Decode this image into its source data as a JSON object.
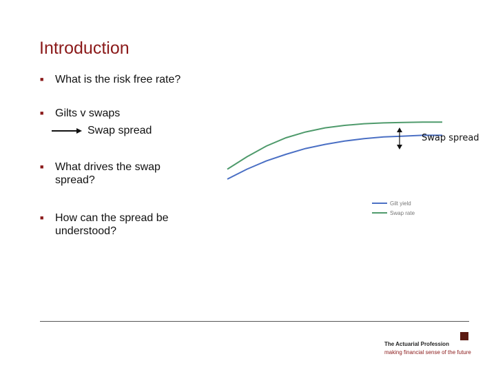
{
  "slide": {
    "title": "Introduction",
    "bullets": [
      {
        "text": "What is the risk free rate?"
      },
      {
        "text": "Gilts v swaps"
      },
      {
        "text": "What drives the swap spread?"
      },
      {
        "text": "How can the spread be understood?"
      }
    ],
    "sub_item": "Swap spread"
  },
  "colors": {
    "title": "#8b1a1a",
    "bullet_marker": "#8b1a1a",
    "gilt_line": "#4a6fc4",
    "swap_line": "#4e9a6b",
    "logo": "#5b1a12"
  },
  "chart_data": {
    "type": "line",
    "annotation": "Swap spread",
    "series": [
      {
        "name": "Gilt yield",
        "color": "#4a6fc4",
        "values": [
          0.0,
          0.12,
          0.22,
          0.3,
          0.37,
          0.42,
          0.46,
          0.49,
          0.51,
          0.52,
          0.53,
          0.53
        ]
      },
      {
        "name": "Swap rate",
        "color": "#4e9a6b",
        "values": [
          0.12,
          0.27,
          0.4,
          0.5,
          0.57,
          0.62,
          0.65,
          0.67,
          0.68,
          0.685,
          0.69,
          0.69
        ]
      }
    ],
    "legend": [
      "Gilt yield",
      "Swap rate"
    ],
    "legend_position": "bottom-right"
  },
  "footer": {
    "org_name": "The Actuarial Profession",
    "tagline": "making financial sense of the future"
  }
}
